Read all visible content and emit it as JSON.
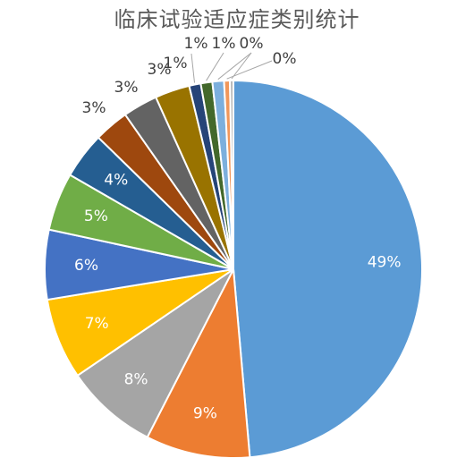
{
  "chart_data": {
    "type": "pie",
    "title": "临床试验适应症类别统计",
    "slices": [
      {
        "label": "49%",
        "value": 49,
        "color": "#5B9BD5"
      },
      {
        "label": "9%",
        "value": 9,
        "color": "#ED7D31"
      },
      {
        "label": "8%",
        "value": 8,
        "color": "#A5A5A5"
      },
      {
        "label": "7%",
        "value": 7,
        "color": "#FFC000"
      },
      {
        "label": "6%",
        "value": 6,
        "color": "#4472C4"
      },
      {
        "label": "5%",
        "value": 5,
        "color": "#70AD47"
      },
      {
        "label": "4%",
        "value": 4,
        "color": "#255E91"
      },
      {
        "label": "3%",
        "value": 3,
        "color": "#9E480E"
      },
      {
        "label": "3%",
        "value": 3,
        "color": "#636363"
      },
      {
        "label": "3%",
        "value": 3,
        "color": "#997300"
      },
      {
        "label": "1%",
        "value": 1,
        "color": "#264478"
      },
      {
        "label": "1%",
        "value": 1,
        "color": "#43682B"
      },
      {
        "label": "1%",
        "value": 1,
        "color": "#7CAFDD"
      },
      {
        "label": "0%",
        "value": 0.5,
        "color": "#F1975A"
      },
      {
        "label": "0%",
        "value": 0.3,
        "color": "#B7B7B7"
      }
    ]
  }
}
